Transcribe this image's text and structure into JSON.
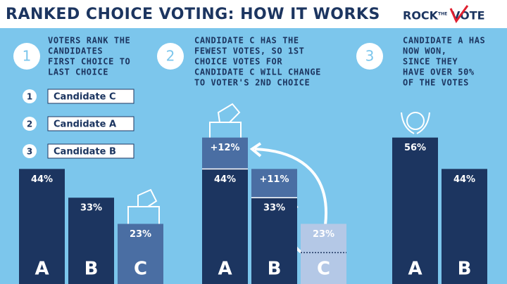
{
  "header": {
    "title": "RANKED CHOICE VOTING: HOW IT WORKS",
    "logo": {
      "rock": "ROCK",
      "the": "THE",
      "vote": "VOTE"
    }
  },
  "steps": [
    {
      "number": "1",
      "lines": [
        "VOTERS RANK THE",
        "CANDIDATES",
        "FIRST CHOICE TO",
        "LAST CHOICE"
      ]
    },
    {
      "number": "2",
      "lines": [
        "CANDIDATE C HAS THE",
        "FEWEST VOTES, SO 1ST",
        "CHOICE VOTES FOR",
        "CANDIDATE C WILL CHANGE",
        "TO VOTER'S 2ND CHOICE"
      ]
    },
    {
      "number": "3",
      "lines": [
        "CANDIDATE A HAS",
        "NOW WON,",
        "SINCE THEY",
        "HAVE OVER 50%",
        "OF THE VOTES"
      ]
    }
  ],
  "ballot": [
    {
      "rank": "1",
      "name": "Candidate C"
    },
    {
      "rank": "2",
      "name": "Candidate A"
    },
    {
      "rank": "3",
      "name": "Candidate B"
    }
  ],
  "panels": [
    {
      "bars": [
        {
          "label": "A",
          "value": 44,
          "value_label": "44%",
          "color": "#1c3560"
        },
        {
          "label": "B",
          "value": 33,
          "value_label": "33%",
          "color": "#1c3560"
        },
        {
          "label": "C",
          "value": 23,
          "value_label": "23%",
          "color": "#4a6ea3"
        }
      ]
    },
    {
      "bars": [
        {
          "label": "A",
          "value": 44,
          "value_label": "44%",
          "color": "#1c3560",
          "added": {
            "value": 12,
            "label": "+12%",
            "color": "#4a6ea3"
          }
        },
        {
          "label": "B",
          "value": 33,
          "value_label": "33%",
          "color": "#1c3560",
          "added": {
            "value": 11,
            "label": "+11%",
            "color": "#4a6ea3"
          }
        },
        {
          "label": "C",
          "value": 23,
          "value_label": "23%",
          "color": "#b4c8e6"
        }
      ]
    },
    {
      "bars": [
        {
          "label": "A",
          "value": 56,
          "value_label": "56%",
          "color": "#1c3560"
        },
        {
          "label": "B",
          "value": 44,
          "value_label": "44%",
          "color": "#1c3560"
        }
      ]
    }
  ]
}
